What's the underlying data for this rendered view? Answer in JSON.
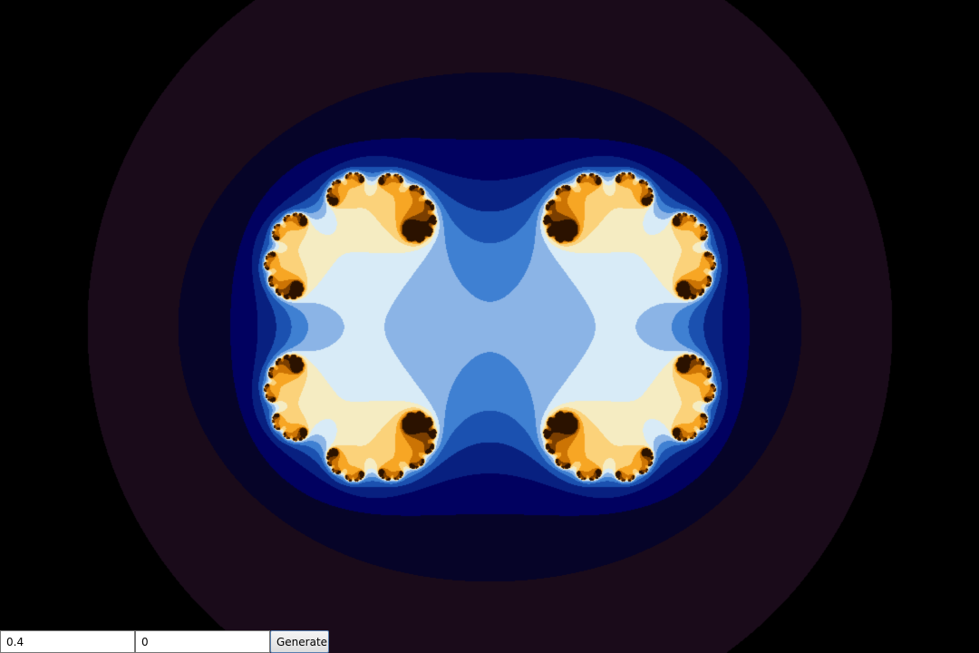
{
  "inputs": {
    "real_value": "0.4",
    "imag_value": "0"
  },
  "buttons": {
    "generate_label": "Generate"
  },
  "colors": {
    "background": "#000000",
    "palette": [
      "#1a0b1a",
      "#060428",
      "#010160",
      "#082080",
      "#1b51b0",
      "#3f80d2",
      "#8bb4e6",
      "#d8ebf7",
      "#f5ecc2",
      "#fbd27a",
      "#f7a624",
      "#cc7404",
      "#7a3e00",
      "#2b1200"
    ]
  }
}
